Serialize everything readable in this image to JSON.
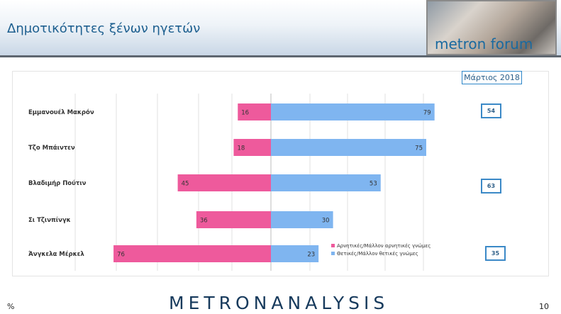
{
  "header": {
    "title": "Δημοτικότητες ξένων ηγετών",
    "forum_logo_text": "metron forum 2.0"
  },
  "badge": {
    "date": "Μάρτιος 2018"
  },
  "chart_data": {
    "type": "bar",
    "orientation": "horizontal-diverging",
    "categories": [
      "Εμμανουέλ Μακρόν",
      "Τζο Μπάιντεν",
      "Βλαδιμήρ Πούτιν",
      "Σι Τζινπίνγκ",
      "Άνγκελα Μέρκελ"
    ],
    "series": [
      {
        "name": "Αρνητικές/Μάλλον αρνητικές γνώμες",
        "color": "#ee5a9c",
        "values": [
          16,
          18,
          45,
          36,
          76
        ]
      },
      {
        "name": "Θετικές/Μάλλον θετικές γνώμες",
        "color": "#7fb5f0",
        "values": [
          79,
          75,
          53,
          30,
          23
        ]
      }
    ],
    "comparison_boxes": [
      {
        "category": "Εμμανουέλ Μακρόν",
        "value": "54"
      },
      {
        "category": "Βλαδιμήρ Πούτιν",
        "value": "63"
      },
      {
        "category": "Άνγκελα Μέρκελ",
        "value": "35"
      }
    ],
    "legend_position": "bottom-right",
    "grid": true
  },
  "footer": {
    "logo": "METRONANALYSIS",
    "unit": "%",
    "page": "10"
  }
}
